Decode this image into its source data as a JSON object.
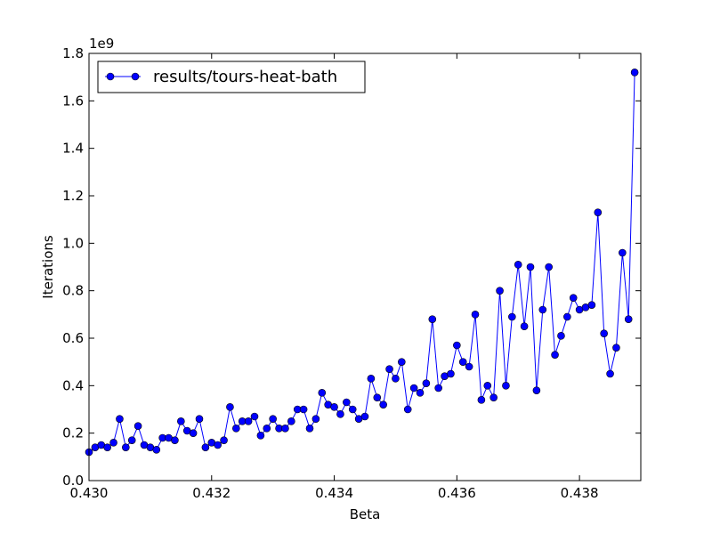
{
  "chart_data": {
    "type": "line",
    "title": "",
    "xlabel": "Beta",
    "ylabel": "Iterations",
    "y_multiplier_label": "1e9",
    "xlim": [
      0.43,
      0.439
    ],
    "ylim": [
      0.0,
      1.8
    ],
    "x_ticks": [
      0.43,
      0.432,
      0.434,
      0.436,
      0.438
    ],
    "x_tick_labels": [
      "0.430",
      "0.432",
      "0.434",
      "0.436",
      "0.438"
    ],
    "y_ticks": [
      0.0,
      0.2,
      0.4,
      0.6,
      0.8,
      1.0,
      1.2,
      1.4,
      1.6,
      1.8
    ],
    "y_tick_labels": [
      "0.0",
      "0.2",
      "0.4",
      "0.6",
      "0.8",
      "1.0",
      "1.2",
      "1.4",
      "1.6",
      "1.8"
    ],
    "grid": false,
    "legend_position": "top-left",
    "series": [
      {
        "name": "results/tours-heat-bath",
        "color": "#0000ff",
        "marker": "circle",
        "x": [
          0.43,
          0.4301,
          0.4302,
          0.4303,
          0.4304,
          0.4305,
          0.4306,
          0.4307,
          0.4308,
          0.4309,
          0.431,
          0.4311,
          0.4312,
          0.4313,
          0.4314,
          0.4315,
          0.4316,
          0.4317,
          0.4318,
          0.4319,
          0.432,
          0.4321,
          0.4322,
          0.4323,
          0.4324,
          0.4325,
          0.4326,
          0.4327,
          0.4328,
          0.4329,
          0.433,
          0.4331,
          0.4332,
          0.4333,
          0.4334,
          0.4335,
          0.4336,
          0.4337,
          0.4338,
          0.4339,
          0.434,
          0.4341,
          0.4342,
          0.4343,
          0.4344,
          0.4345,
          0.4346,
          0.4347,
          0.4348,
          0.4349,
          0.435,
          0.4351,
          0.4352,
          0.4353,
          0.4354,
          0.4355,
          0.4356,
          0.4357,
          0.4358,
          0.4359,
          0.436,
          0.4361,
          0.4362,
          0.4363,
          0.4364,
          0.4365,
          0.4366,
          0.4367,
          0.4368,
          0.4369,
          0.437,
          0.4371,
          0.4372,
          0.4373,
          0.4374,
          0.4375,
          0.4376,
          0.4377,
          0.4378,
          0.4379,
          0.438,
          0.4381,
          0.4382,
          0.4383,
          0.4384,
          0.4385,
          0.4386,
          0.4387,
          0.4388,
          0.4389
        ],
        "y": [
          0.12,
          0.14,
          0.15,
          0.14,
          0.16,
          0.26,
          0.14,
          0.17,
          0.23,
          0.15,
          0.14,
          0.13,
          0.18,
          0.18,
          0.17,
          0.25,
          0.21,
          0.2,
          0.26,
          0.14,
          0.16,
          0.15,
          0.17,
          0.31,
          0.22,
          0.25,
          0.25,
          0.27,
          0.19,
          0.22,
          0.26,
          0.22,
          0.22,
          0.25,
          0.3,
          0.3,
          0.22,
          0.26,
          0.37,
          0.32,
          0.31,
          0.28,
          0.33,
          0.3,
          0.26,
          0.27,
          0.43,
          0.35,
          0.32,
          0.47,
          0.43,
          0.5,
          0.3,
          0.39,
          0.37,
          0.41,
          0.68,
          0.39,
          0.44,
          0.45,
          0.57,
          0.5,
          0.48,
          0.7,
          0.34,
          0.4,
          0.35,
          0.8,
          0.4,
          0.69,
          0.91,
          0.65,
          0.9,
          0.38,
          0.72,
          0.9,
          0.53,
          0.61,
          0.69,
          0.77,
          0.72,
          0.73,
          0.74,
          1.13,
          0.62,
          0.45,
          0.56,
          0.96,
          0.68,
          1.72
        ]
      }
    ]
  }
}
